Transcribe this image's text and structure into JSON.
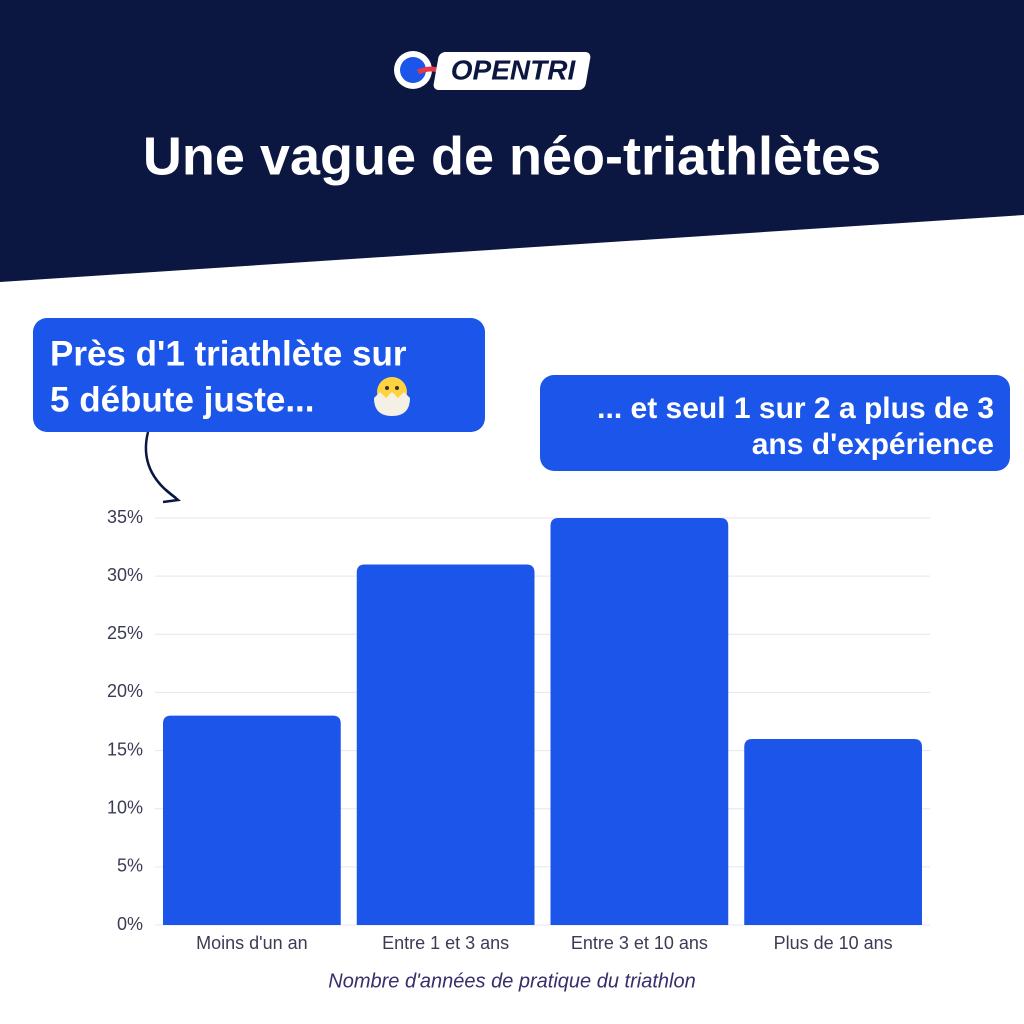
{
  "brand": "OPENTRI",
  "chart_data": {
    "type": "bar",
    "title": "Une vague de néo-triathlètes",
    "annotations": [
      [
        "Près d'1 triathlète sur",
        "5 débute juste..."
      ],
      [
        "... et seul 1 sur 2 a plus de 3",
        "ans d'expérience"
      ]
    ],
    "x_label": "Nombre d'années de pratique du triathlon",
    "categories": [
      "Moins d'un an",
      "Entre 1 et 3 ans",
      "Entre 3 et 10 ans",
      "Plus de 10 ans"
    ],
    "values": [
      18,
      31,
      35,
      16
    ],
    "color": "#1b55ea",
    "ylim": [
      0,
      35
    ],
    "yticks": [
      {
        "value": 0,
        "label": "0%"
      },
      {
        "value": 5,
        "label": "5%"
      },
      {
        "value": 10,
        "label": "10%"
      },
      {
        "value": 15,
        "label": "15%"
      },
      {
        "value": 20,
        "label": "20%"
      },
      {
        "value": 25,
        "label": "25%"
      },
      {
        "value": 30,
        "label": "30%"
      },
      {
        "value": 35,
        "label": "35%"
      }
    ],
    "grid": true
  }
}
